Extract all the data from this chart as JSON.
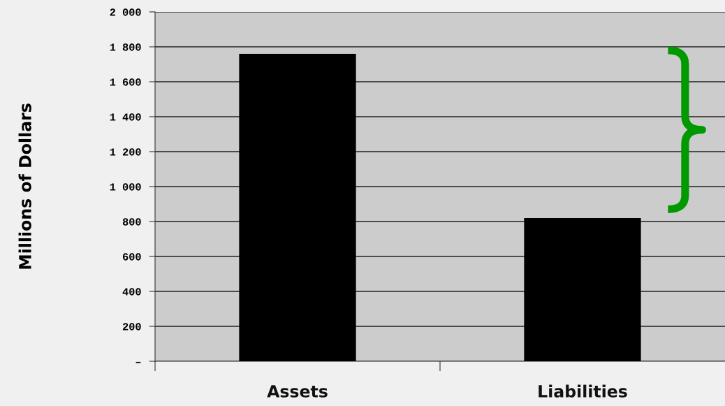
{
  "chart_data": {
    "type": "bar",
    "ylabel": "Millions of Dollars",
    "categories": [
      "Assets",
      "Liabilities"
    ],
    "values": [
      1760,
      820
    ],
    "color": "#000000",
    "ylim": [
      0,
      2000
    ],
    "yticks": [
      {
        "value": 0,
        "label": "–"
      },
      200,
      400,
      600,
      800,
      {
        "value": 1000,
        "label": "1 000"
      },
      {
        "value": 1200,
        "label": "1 200"
      },
      {
        "value": 1400,
        "label": "1 400"
      },
      {
        "value": 1600,
        "label": "1 600"
      },
      {
        "value": 1800,
        "label": "1 800"
      },
      {
        "value": 2000,
        "label": "2 000"
      }
    ],
    "grid": "y",
    "legend": false
  }
}
